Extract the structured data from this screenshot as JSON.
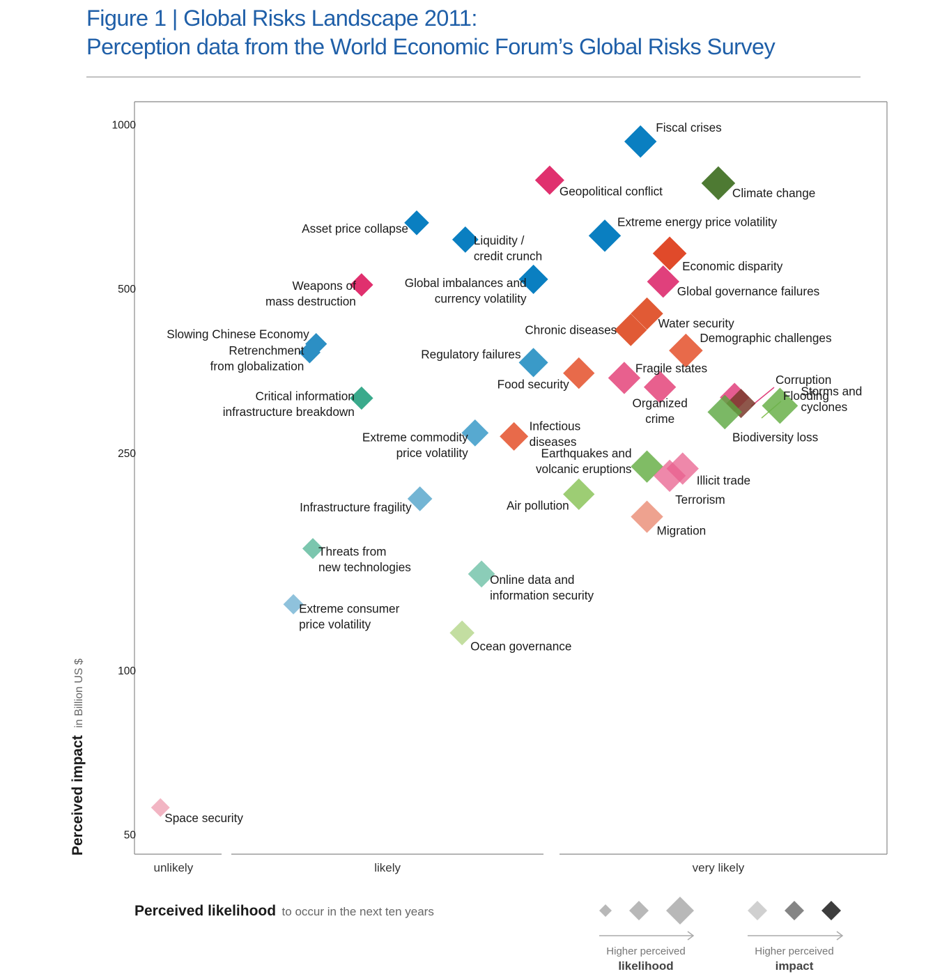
{
  "title_line1": "Figure 1 | Global Risks Landscape 2011:",
  "title_line2": "Perception data from the World Economic Forum’s Global Risks Survey",
  "chart_data": {
    "type": "scatter",
    "ylabel": "Perceived impact",
    "ylabel_unit": "in Billion US $",
    "xlabel": "Perceived likelihood",
    "xlabel_sub": "to occur in the next ten years",
    "y_scale": "log",
    "ylim": [
      46,
      1100
    ],
    "y_ticks": [
      {
        "value": 1000,
        "label": "1000"
      },
      {
        "value": 500,
        "label": "500"
      },
      {
        "value": 250,
        "label": "250"
      },
      {
        "value": 100,
        "label": "100"
      },
      {
        "value": 50,
        "label": "50"
      }
    ],
    "x_ticks": [
      {
        "value": 0.6,
        "label": "unlikely"
      },
      {
        "value": 3.9,
        "label": "likely"
      },
      {
        "value": 9.0,
        "label": "very likely"
      }
    ],
    "xlim": [
      0,
      11.6
    ],
    "grid": false,
    "legend": {
      "position": "bottom-right",
      "likelihood_caption_1": "Higher perceived",
      "likelihood_caption_2": "likelihood",
      "impact_caption_1": "Higher perceived",
      "impact_caption_2": "impact",
      "shades": [
        "#d0d0d0",
        "#858585",
        "#3d3d3d"
      ],
      "size_marker_color": "#b8b8b8"
    },
    "colors": {
      "economic": "#0a7fc1",
      "geopolitical": "#e0306e",
      "societal": "#e15a35",
      "environmental": "#5a9c3a",
      "technological": "#3aaa8c"
    },
    "points": [
      {
        "name": "Fiscal crises",
        "label": [
          "Fiscal crises"
        ],
        "x": 7.8,
        "y": 930,
        "size": 3,
        "color": "#0a7fc1"
      },
      {
        "name": "Climate change",
        "label": [
          "Climate change"
        ],
        "x": 9.0,
        "y": 780,
        "size": 3.2,
        "color": "#4e7a33"
      },
      {
        "name": "Geopolitical conflict",
        "label": [
          "Geopolitical conflict"
        ],
        "x": 6.4,
        "y": 790,
        "size": 2.6,
        "color": "#e0306e"
      },
      {
        "name": "Asset price collapse",
        "label": [
          "Asset price collapse"
        ],
        "x": 4.35,
        "y": 660,
        "size": 2,
        "color": "#0a7fc1"
      },
      {
        "name": "Liquidity / credit crunch",
        "label": [
          "Liquidity /",
          "credit crunch"
        ],
        "x": 5.1,
        "y": 615,
        "size": 2.2,
        "color": "#0a7fc1"
      },
      {
        "name": "Extreme energy price volatility",
        "label": [
          "Extreme energy price volatility"
        ],
        "x": 7.25,
        "y": 625,
        "size": 3,
        "color": "#0a7fc1"
      },
      {
        "name": "Economic disparity",
        "label": [
          "Economic disparity"
        ],
        "x": 8.25,
        "y": 580,
        "size": 3.2,
        "color": "#e04a2a"
      },
      {
        "name": "Global imbalances and currency volatility",
        "label": [
          "Global imbalances and",
          "currency volatility"
        ],
        "x": 6.15,
        "y": 520,
        "size": 2.6,
        "color": "#0a7fc1"
      },
      {
        "name": "Global governance failures",
        "label": [
          "Global governance failures"
        ],
        "x": 8.15,
        "y": 515,
        "size": 3,
        "color": "#e0407c"
      },
      {
        "name": "Weapons of mass destruction",
        "label": [
          "Weapons of",
          "mass destruction"
        ],
        "x": 3.5,
        "y": 508,
        "size": 1.8,
        "color": "#e0306e"
      },
      {
        "name": "Water security",
        "label": [
          "Water security"
        ],
        "x": 7.9,
        "y": 450,
        "size": 3,
        "color": "#e15a35"
      },
      {
        "name": "Chronic diseases",
        "label": [
          "Chronic diseases"
        ],
        "x": 7.65,
        "y": 420,
        "size": 3,
        "color": "#e15a35"
      },
      {
        "name": "Slowing Chinese Economy",
        "label": [
          "Slowing Chinese Economy"
        ],
        "x": 2.8,
        "y": 396,
        "size": 1.6,
        "color": "#2c8fc4"
      },
      {
        "name": "Retrenchment from globalization",
        "label": [
          "Retrenchment",
          "from globalization"
        ],
        "x": 2.7,
        "y": 382,
        "size": 1.6,
        "color": "#2c8fc4"
      },
      {
        "name": "Demographic challenges",
        "label": [
          "Demographic challenges"
        ],
        "x": 8.5,
        "y": 385,
        "size": 3.2,
        "color": "#e86a4a"
      },
      {
        "name": "Regulatory failures",
        "label": [
          "Regulatory failures"
        ],
        "x": 6.15,
        "y": 366,
        "size": 2.6,
        "color": "#3a9ac8"
      },
      {
        "name": "Food security",
        "label": [
          "Food security"
        ],
        "x": 6.85,
        "y": 350,
        "size": 2.9,
        "color": "#e86a4a"
      },
      {
        "name": "Fragile states",
        "label": [
          "Fragile states"
        ],
        "x": 7.55,
        "y": 343,
        "size": 3,
        "color": "#e8608e"
      },
      {
        "name": "Organized crime",
        "label": [
          "Organized",
          "crime"
        ],
        "x": 8.1,
        "y": 330,
        "size": 3,
        "color": "#e8608e"
      },
      {
        "name": "Critical information infrastructure breakdown",
        "label": [
          "Critical information",
          "infrastructure breakdown"
        ],
        "x": 3.5,
        "y": 315,
        "size": 1.8,
        "color": "#3aaa8c"
      },
      {
        "name": "Corruption",
        "label": [
          "Corruption"
        ],
        "x": 9.25,
        "y": 316,
        "size": 2.6,
        "color": "#e0407c",
        "opacity": 0.85,
        "label_x": 1113,
        "label_y": 551
      },
      {
        "name": "Flooding",
        "label": [
          "Flooding"
        ],
        "x": 9.35,
        "y": 308,
        "size": 2.6,
        "color": "#7a3a2c",
        "opacity": 0.85,
        "label_x": 1124,
        "label_y": 574
      },
      {
        "name": "Storms and cyclones",
        "label": [
          "Storms and",
          "cyclones"
        ],
        "x": 9.95,
        "y": 305,
        "size": 3.5,
        "color": "#6ab04a",
        "opacity": 0.85
      },
      {
        "name": "Biodiversity loss",
        "label": [
          "Biodiversity loss"
        ],
        "x": 9.1,
        "y": 297,
        "size": 3.3,
        "color": "#5aa63e",
        "opacity": 0.8
      },
      {
        "name": "Extreme commodity price volatility",
        "label": [
          "Extreme commodity",
          "price volatility"
        ],
        "x": 5.25,
        "y": 272,
        "size": 2.3,
        "color": "#3a9ac8",
        "opacity": 0.85
      },
      {
        "name": "Infectious diseases",
        "label": [
          "Infectious",
          "diseases"
        ],
        "x": 5.85,
        "y": 268,
        "size": 2.5,
        "color": "#e86a4a"
      },
      {
        "name": "Earthquakes and volcanic eruptions",
        "label": [
          "Earthquakes and",
          "volcanic eruptions"
        ],
        "x": 7.9,
        "y": 236,
        "size": 3,
        "color": "#6ab04a",
        "opacity": 0.85
      },
      {
        "name": "Illicit trade",
        "label": [
          "Illicit trade"
        ],
        "x": 8.45,
        "y": 234,
        "size": 3,
        "color": "#e8608e",
        "opacity": 0.75
      },
      {
        "name": "Terrorism",
        "label": [
          "Terrorism"
        ],
        "x": 8.25,
        "y": 227,
        "size": 3,
        "color": "#e8608e",
        "opacity": 0.75
      },
      {
        "name": "Air pollution",
        "label": [
          "Air pollution"
        ],
        "x": 6.85,
        "y": 210,
        "size": 2.9,
        "color": "#8cc45c",
        "opacity": 0.85
      },
      {
        "name": "Infrastructure fragility",
        "label": [
          "Infrastructure fragility"
        ],
        "x": 4.4,
        "y": 206,
        "size": 2,
        "color": "#5aa8cc",
        "opacity": 0.85
      },
      {
        "name": "Migration",
        "label": [
          "Migration"
        ],
        "x": 7.9,
        "y": 191,
        "size": 3,
        "color": "#e8836a",
        "opacity": 0.75
      },
      {
        "name": "Threats from new technologies",
        "label": [
          "Threats from",
          "new technologies"
        ],
        "x": 2.75,
        "y": 167,
        "size": 1.5,
        "color": "#5ab89a",
        "opacity": 0.8
      },
      {
        "name": "Online data and information security",
        "label": [
          "Online data and",
          "information security"
        ],
        "x": 5.35,
        "y": 150,
        "size": 2.3,
        "color": "#5ab89a",
        "opacity": 0.7
      },
      {
        "name": "Extreme consumer price volatility",
        "label": [
          "Extreme consumer",
          "price volatility"
        ],
        "x": 2.45,
        "y": 132,
        "size": 1.4,
        "color": "#6aaed0",
        "opacity": 0.75
      },
      {
        "name": "Ocean governance",
        "label": [
          "Ocean governance"
        ],
        "x": 5.05,
        "y": 117,
        "size": 2,
        "color": "#b8d890",
        "opacity": 0.85
      },
      {
        "name": "Space security",
        "label": [
          "Space security"
        ],
        "x": 0.4,
        "y": 56,
        "size": 1.2,
        "color": "#f0a8b8",
        "opacity": 0.85
      }
    ]
  }
}
